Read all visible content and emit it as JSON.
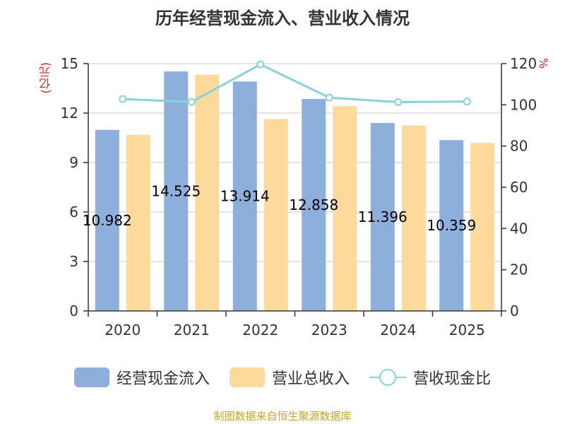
{
  "chart_data": {
    "type": "bar",
    "title": "历年经营现金流入、营业收入情况",
    "categories": [
      "2020",
      "2021",
      "2022",
      "2023",
      "2024",
      "2025"
    ],
    "left_axis": {
      "unit": "(亿元)",
      "ylim": [
        0,
        15
      ],
      "ticks": [
        0,
        3,
        6,
        9,
        12,
        15
      ]
    },
    "right_axis": {
      "unit": "%",
      "ylim": [
        0,
        120
      ],
      "ticks": [
        0,
        20,
        40,
        60,
        80,
        100,
        120
      ]
    },
    "series": [
      {
        "name": "经营现金流入",
        "type": "bar",
        "axis": "left",
        "color": "#8eaedb",
        "values": [
          10.982,
          14.525,
          13.914,
          12.858,
          11.396,
          10.359
        ],
        "labels": [
          "10.982",
          "14.525",
          "13.914",
          "12.858",
          "11.396",
          "10.359"
        ]
      },
      {
        "name": "营业总收入",
        "type": "bar",
        "axis": "left",
        "color": "#fdd99b",
        "values": [
          10.68,
          14.33,
          11.64,
          12.42,
          11.25,
          10.19
        ]
      },
      {
        "name": "营收现金比",
        "type": "line",
        "axis": "right",
        "color": "#89d3d8",
        "values": [
          102.8,
          101.4,
          119.6,
          103.5,
          101.3,
          101.6
        ]
      }
    ],
    "grid": true,
    "legend_position": "bottom"
  },
  "footer": {
    "source": "制图数据来自恒生聚源数据库"
  }
}
